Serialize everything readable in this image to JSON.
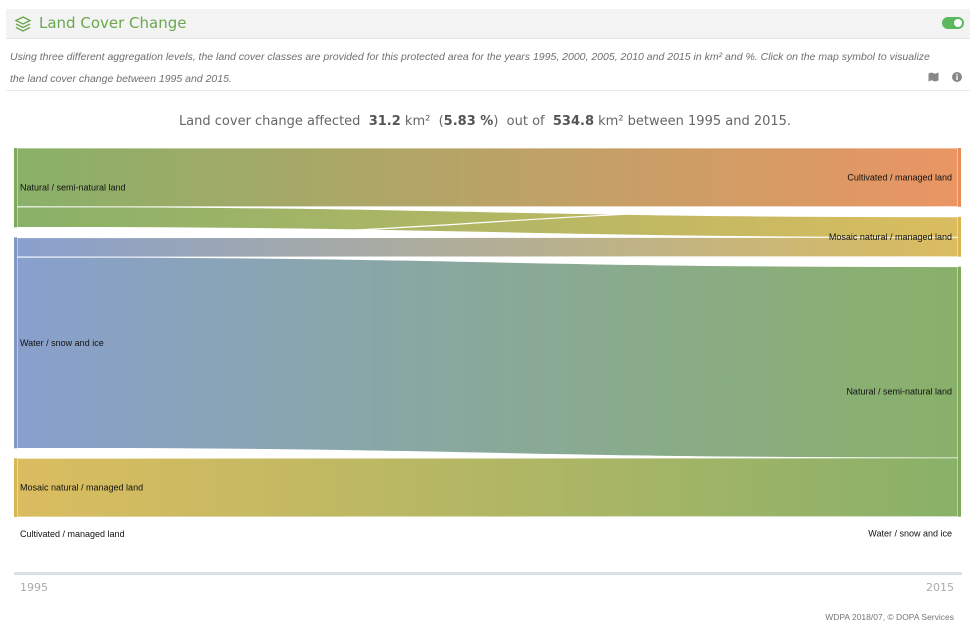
{
  "header": {
    "title": "Land Cover Change",
    "icon": "layers-icon",
    "toggle_on": true,
    "accent": "#6aa84f"
  },
  "description": {
    "line1": "Using three different aggregation levels, the land cover classes are provided for this protected area for the years 1995, 2000, 2005, 2010 and 2015 in km² and %. Click on the map symbol to visualize",
    "line2": "the land cover change between 1995 and 2015."
  },
  "tools": {
    "map_icon": "map-icon",
    "info_icon": "info-icon"
  },
  "summary": {
    "prefix": "Land cover change affected",
    "area_changed": "31.2",
    "unit1": "km²",
    "pct_open": "(",
    "percent": "5.83 %",
    "pct_close": ")",
    "middle": "out of",
    "area_total": "534.8",
    "unit2": "km² between 1995 and 2015."
  },
  "chart_data": {
    "type": "sankey",
    "nodes_left": [
      {
        "label": "Natural / semi-natural land",
        "color": "#7faa5c",
        "share": 0.205
      },
      {
        "label": "Water / snow and ice",
        "color": "#7f98c9",
        "share": 0.545
      },
      {
        "label": "Mosaic natural / managed land",
        "color": "#d8b752",
        "share": 0.152
      },
      {
        "label": "Cultivated / managed land",
        "color": "#e88c57",
        "share": 0.0
      }
    ],
    "nodes_right": [
      {
        "label": "Cultivated / managed land",
        "color": "#e88c57",
        "share": 0.152
      },
      {
        "label": "Mosaic natural / managed land",
        "color": "#d8b752",
        "share": 0.103
      },
      {
        "label": "Natural / semi-natural land",
        "color": "#7faa5c",
        "share": 0.646
      },
      {
        "label": "Water / snow and ice",
        "color": "#7f98c9",
        "share": 0.0
      }
    ],
    "links": [
      {
        "from": 0,
        "to": 0,
        "share": 0.152
      },
      {
        "from": 0,
        "to": 1,
        "share": 0.053
      },
      {
        "from": 1,
        "to": 0,
        "share": 0.001
      },
      {
        "from": 1,
        "to": 1,
        "share": 0.05
      },
      {
        "from": 1,
        "to": 2,
        "share": 0.494
      },
      {
        "from": 2,
        "to": 2,
        "share": 0.152
      }
    ],
    "years": [
      "1995",
      "2015"
    ]
  },
  "credit": "WDPA 2018/07, © DOPA Services"
}
